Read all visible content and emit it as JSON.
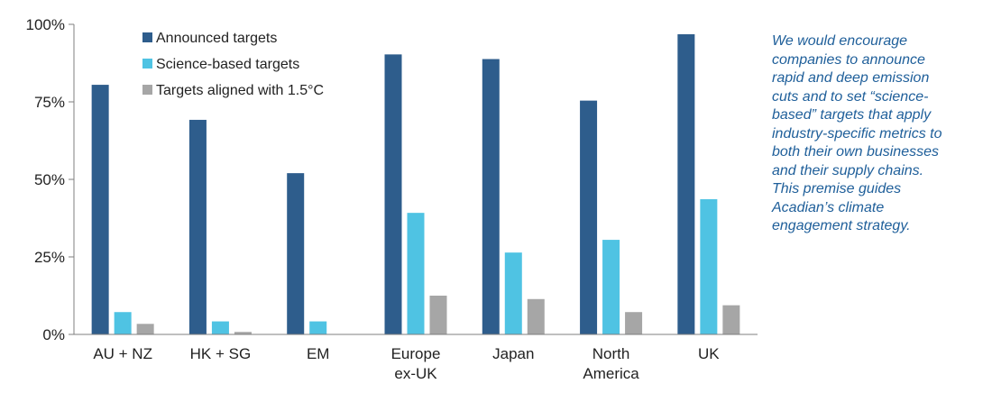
{
  "chart_data": {
    "type": "bar",
    "categories": [
      [
        "AU + NZ"
      ],
      [
        "HK + SG"
      ],
      [
        "EM"
      ],
      [
        "Europe",
        "ex-UK"
      ],
      [
        "Japan"
      ],
      [
        "North",
        "America"
      ],
      [
        "UK"
      ]
    ],
    "series": [
      {
        "name": "Announced targets",
        "color": "#2e5d8c",
        "values": [
          80.5,
          69.2,
          52.0,
          90.3,
          88.8,
          75.4,
          96.8
        ]
      },
      {
        "name": "Science-based targets",
        "color": "#4fc3e3",
        "values": [
          7.2,
          4.2,
          4.2,
          39.2,
          26.4,
          30.5,
          43.6
        ]
      },
      {
        "name": "Targets aligned with 1.5°C",
        "color": "#a6a6a6",
        "values": [
          3.4,
          0.8,
          0,
          12.5,
          11.4,
          7.2,
          9.4
        ]
      }
    ],
    "ylim": [
      0,
      100
    ],
    "yticks": [
      "0%",
      "25%",
      "50%",
      "75%",
      "100%"
    ],
    "ytick_values": [
      0,
      25,
      50,
      75,
      100
    ],
    "legend_position": "top-left",
    "grid": false
  },
  "annotation": {
    "lines": [
      "We would encourage",
      "companies to announce",
      "rapid and deep emission",
      "cuts and to set “science-",
      "based” targets that apply",
      "industry-specific metrics to",
      "both their own businesses",
      "and their supply chains.",
      "This premise guides",
      "Acadian’s climate",
      "engagement strategy."
    ]
  }
}
